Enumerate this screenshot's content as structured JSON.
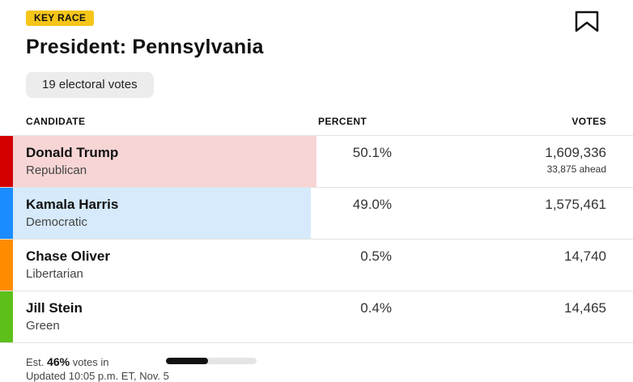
{
  "badge": "KEY RACE",
  "title": "President: Pennsylvania",
  "electoral_votes": "19 electoral votes",
  "columns": {
    "candidate": "CANDIDATE",
    "percent": "PERCENT",
    "votes": "VOTES"
  },
  "candidates": [
    {
      "name": "Donald Trump",
      "party": "Republican",
      "percent": "50.1%",
      "votes": "1,609,336",
      "note": "33,875 ahead",
      "color": "#d40000",
      "fill_color": "#f7d5d5",
      "share": 0.501,
      "fill_fraction": 0.48
    },
    {
      "name": "Kamala Harris",
      "party": "Democratic",
      "percent": "49.0%",
      "votes": "1,575,461",
      "note": "",
      "color": "#1a8cff",
      "fill_color": "#d6eafb",
      "share": 0.49,
      "fill_fraction": 0.47
    },
    {
      "name": "Chase Oliver",
      "party": "Libertarian",
      "percent": "0.5%",
      "votes": "14,740",
      "note": "",
      "color": "#ff8c00",
      "fill_color": "",
      "share": 0.005,
      "fill_fraction": 0
    },
    {
      "name": "Jill Stein",
      "party": "Green",
      "percent": "0.4%",
      "votes": "14,465",
      "note": "",
      "color": "#5cbf1a",
      "fill_color": "",
      "share": 0.004,
      "fill_fraction": 0
    }
  ],
  "footer": {
    "est_prefix": "Est.",
    "est_percent": "46%",
    "est_suffix": "votes in",
    "reported_fraction": 0.46,
    "updated": "Updated 10:05 p.m. ET, Nov. 5"
  },
  "icons": {
    "bookmark": "bookmark-icon"
  },
  "colors": {
    "badge": "#f5c518",
    "pill_bg": "#ececec"
  }
}
